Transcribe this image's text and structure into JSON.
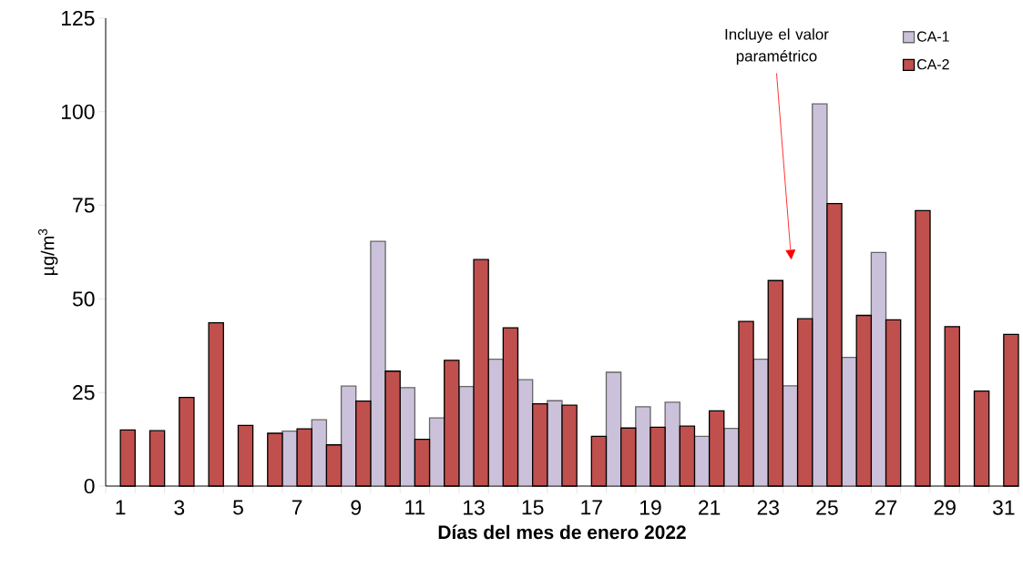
{
  "chart_data": {
    "type": "bar",
    "xlabel": "Días del mes de enero 2022",
    "ylabel": "µg/m$^{3}$",
    "categories": [
      "1",
      null,
      "3",
      null,
      "5",
      null,
      "7",
      null,
      "9",
      null,
      "11",
      null,
      "13",
      null,
      "15",
      null,
      "17",
      null,
      "19",
      null,
      "21",
      null,
      "23",
      null,
      "25",
      null,
      "27",
      null,
      "29",
      null,
      "31"
    ],
    "series": [
      {
        "name": "CA-1",
        "color": "#ccc1da",
        "values": [
          null,
          null,
          null,
          null,
          null,
          null,
          14.7,
          17.7,
          26.7,
          65.4,
          26.3,
          18.2,
          26.6,
          33.9,
          28.4,
          22.8,
          null,
          30.4,
          21.2,
          22.4,
          13.3,
          15.4,
          33.9,
          26.8,
          102.1,
          34.4,
          62.4,
          null,
          null,
          null,
          null
        ]
      },
      {
        "name": "CA-2",
        "color": "#c0504d",
        "values": [
          15.0,
          14.8,
          23.7,
          43.6,
          16.2,
          14.1,
          15.3,
          11.0,
          22.7,
          30.7,
          12.5,
          33.6,
          60.5,
          42.3,
          22.0,
          21.6,
          13.3,
          15.5,
          15.7,
          16.0,
          20.1,
          44.0,
          54.9,
          44.7,
          75.5,
          45.6,
          44.4,
          73.6,
          42.6,
          25.4,
          40.5
        ]
      }
    ],
    "ylim": [
      0,
      125
    ],
    "yticks": [
      0,
      25,
      50,
      75,
      100,
      125
    ],
    "grid": false,
    "legend": "top right",
    "annotations": [
      "Incluye el valor paramétrico"
    ]
  }
}
